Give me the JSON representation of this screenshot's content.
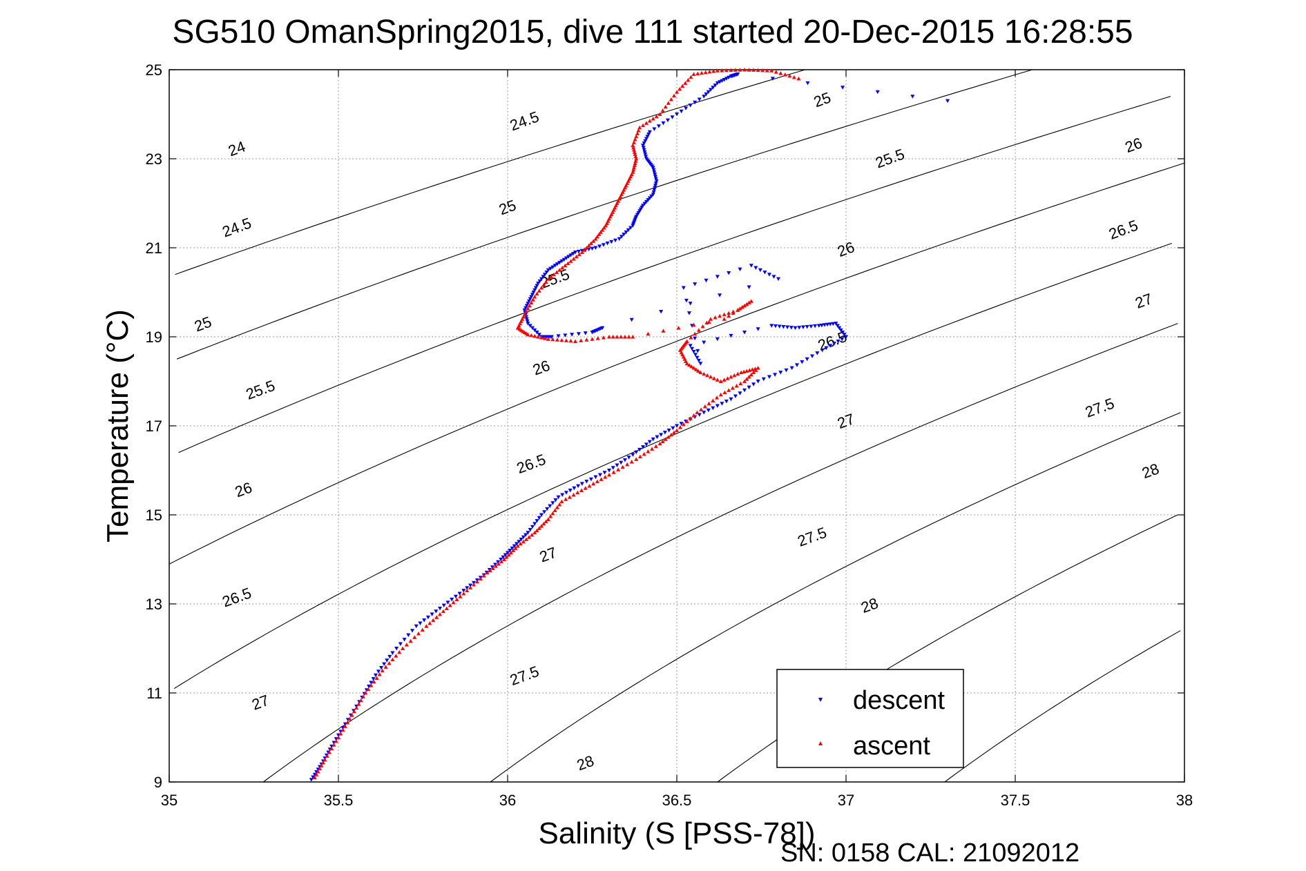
{
  "title": "SG510 OmanSpring2015, dive 111 started 20-Dec-2015 16:28:55",
  "xlabel": "Salinity (S [PSS-78])",
  "ylabel": "Temperature (°C)",
  "footer": "SN: 0158  CAL: 21092012",
  "colors": {
    "descent": "#0000ff",
    "ascent": "#ff0000",
    "contour": "#000000",
    "grid": "#9a9a9a"
  },
  "chart_data": {
    "type": "scatter",
    "xlim": [
      35,
      38
    ],
    "ylim": [
      9,
      25
    ],
    "xticks": [
      35,
      35.5,
      36,
      36.5,
      37,
      37.5,
      38
    ],
    "yticks": [
      9,
      11,
      13,
      15,
      17,
      19,
      21,
      23,
      25
    ],
    "xticklabels": [
      "35",
      "35.5",
      "36",
      "36.5",
      "37",
      "37.5",
      "38"
    ],
    "yticklabels": [
      "9",
      "11",
      "13",
      "15",
      "17",
      "19",
      "21",
      "23",
      "25"
    ],
    "grid": true,
    "legend_position": "bottom-right",
    "density_contours": {
      "levels": [
        24,
        24.5,
        25,
        25.5,
        26,
        26.5,
        27,
        27.5,
        28
      ],
      "labels": [
        {
          "text": "24",
          "s": 35.2,
          "t": 23.22
        },
        {
          "text": "24.5",
          "s": 35.2,
          "t": 21.45
        },
        {
          "text": "24.5",
          "s": 36.05,
          "t": 23.84
        },
        {
          "text": "25",
          "s": 35.1,
          "t": 19.28
        },
        {
          "text": "25",
          "s": 36.0,
          "t": 21.9
        },
        {
          "text": "25",
          "s": 36.93,
          "t": 24.32
        },
        {
          "text": "25.5",
          "s": 35.27,
          "t": 17.8
        },
        {
          "text": "25.5",
          "s": 37.13,
          "t": 23.0
        },
        {
          "text": "25.5",
          "s": 36.14,
          "t": 20.3
        },
        {
          "text": "26",
          "s": 35.22,
          "t": 15.56
        },
        {
          "text": "26",
          "s": 36.1,
          "t": 18.3
        },
        {
          "text": "26",
          "s": 37.0,
          "t": 20.96
        },
        {
          "text": "26",
          "s": 37.85,
          "t": 23.3
        },
        {
          "text": "26.5",
          "s": 35.2,
          "t": 13.14
        },
        {
          "text": "26.5",
          "s": 36.07,
          "t": 16.14
        },
        {
          "text": "26.5",
          "s": 36.96,
          "t": 18.9
        },
        {
          "text": "26.5",
          "s": 37.82,
          "t": 21.4
        },
        {
          "text": "27",
          "s": 35.27,
          "t": 10.78
        },
        {
          "text": "27",
          "s": 36.12,
          "t": 14.1
        },
        {
          "text": "27",
          "s": 37.0,
          "t": 17.1
        },
        {
          "text": "27",
          "s": 37.88,
          "t": 19.8
        },
        {
          "text": "27.5",
          "s": 36.05,
          "t": 11.38
        },
        {
          "text": "27.5",
          "s": 36.9,
          "t": 14.5
        },
        {
          "text": "27.5",
          "s": 37.75,
          "t": 17.4
        },
        {
          "text": "28",
          "s": 36.23,
          "t": 9.42
        },
        {
          "text": "28",
          "s": 37.07,
          "t": 12.96
        },
        {
          "text": "28",
          "s": 37.9,
          "t": 15.98
        }
      ]
    },
    "series": [
      {
        "name": "descent",
        "marker": "triangle-down",
        "color": "#0000ff",
        "points": [
          [
            35.42,
            9.05
          ],
          [
            35.45,
            9.4
          ],
          [
            35.48,
            9.8
          ],
          [
            35.52,
            10.3
          ],
          [
            35.57,
            10.9
          ],
          [
            35.61,
            11.4
          ],
          [
            35.66,
            11.9
          ],
          [
            35.73,
            12.5
          ],
          [
            35.8,
            12.9
          ],
          [
            35.87,
            13.3
          ],
          [
            35.93,
            13.65
          ],
          [
            35.98,
            14.0
          ],
          [
            36.02,
            14.3
          ],
          [
            36.06,
            14.6
          ],
          [
            36.1,
            15.0
          ],
          [
            36.15,
            15.4
          ],
          [
            36.22,
            15.7
          ],
          [
            36.3,
            16.0
          ],
          [
            36.37,
            16.35
          ],
          [
            36.43,
            16.7
          ],
          [
            36.5,
            17.0
          ],
          [
            36.58,
            17.3
          ],
          [
            36.66,
            17.6
          ],
          [
            36.74,
            18.0
          ],
          [
            36.84,
            18.3
          ],
          [
            36.93,
            18.7
          ],
          [
            37.0,
            19.0
          ],
          [
            36.97,
            19.3
          ],
          [
            36.92,
            19.25
          ],
          [
            36.85,
            19.2
          ],
          [
            36.78,
            19.25
          ],
          [
            36.54,
            18.8
          ],
          [
            36.57,
            18.4
          ],
          [
            36.52,
            20.1
          ],
          [
            36.72,
            20.6
          ],
          [
            36.8,
            20.3
          ],
          [
            36.28,
            19.2
          ],
          [
            36.25,
            19.1
          ],
          [
            36.13,
            19.0
          ],
          [
            36.1,
            19.0
          ],
          [
            36.06,
            19.3
          ],
          [
            36.05,
            19.6
          ],
          [
            36.07,
            19.9
          ],
          [
            36.09,
            20.2
          ],
          [
            36.12,
            20.5
          ],
          [
            36.16,
            20.7
          ],
          [
            36.2,
            20.9
          ],
          [
            36.26,
            21.0
          ],
          [
            36.33,
            21.2
          ],
          [
            36.37,
            21.5
          ],
          [
            36.38,
            21.7
          ],
          [
            36.4,
            21.95
          ],
          [
            36.43,
            22.2
          ],
          [
            36.44,
            22.5
          ],
          [
            36.43,
            22.8
          ],
          [
            36.41,
            23.0
          ],
          [
            36.4,
            23.3
          ],
          [
            36.42,
            23.6
          ],
          [
            36.5,
            24.0
          ],
          [
            36.58,
            24.4
          ],
          [
            36.62,
            24.7
          ],
          [
            36.66,
            24.85
          ],
          [
            36.68,
            24.9
          ],
          [
            37.3,
            24.3
          ]
        ]
      },
      {
        "name": "ascent",
        "marker": "triangle-up",
        "color": "#ff0000",
        "points": [
          [
            35.43,
            9.1
          ],
          [
            35.46,
            9.5
          ],
          [
            35.5,
            10.0
          ],
          [
            35.54,
            10.5
          ],
          [
            35.58,
            11.0
          ],
          [
            35.63,
            11.5
          ],
          [
            35.69,
            12.0
          ],
          [
            35.76,
            12.5
          ],
          [
            35.82,
            12.9
          ],
          [
            35.88,
            13.3
          ],
          [
            35.94,
            13.7
          ],
          [
            35.99,
            14.0
          ],
          [
            36.03,
            14.3
          ],
          [
            36.08,
            14.6
          ],
          [
            36.12,
            14.9
          ],
          [
            36.16,
            15.3
          ],
          [
            36.23,
            15.6
          ],
          [
            36.3,
            15.9
          ],
          [
            36.38,
            16.25
          ],
          [
            36.45,
            16.6
          ],
          [
            36.5,
            16.9
          ],
          [
            36.56,
            17.3
          ],
          [
            36.63,
            17.7
          ],
          [
            36.7,
            18.0
          ],
          [
            36.74,
            18.3
          ],
          [
            36.69,
            18.2
          ],
          [
            36.63,
            18.0
          ],
          [
            36.57,
            18.2
          ],
          [
            36.53,
            18.4
          ],
          [
            36.51,
            18.7
          ],
          [
            36.53,
            18.9
          ],
          [
            36.6,
            19.4
          ],
          [
            36.68,
            19.6
          ],
          [
            36.72,
            19.8
          ],
          [
            36.64,
            19.4
          ],
          [
            36.37,
            19.0
          ],
          [
            36.3,
            19.0
          ],
          [
            36.2,
            18.9
          ],
          [
            36.12,
            18.95
          ],
          [
            36.06,
            19.05
          ],
          [
            36.03,
            19.2
          ],
          [
            36.05,
            19.5
          ],
          [
            36.08,
            19.9
          ],
          [
            36.12,
            20.3
          ],
          [
            36.17,
            20.6
          ],
          [
            36.22,
            20.9
          ],
          [
            36.26,
            21.2
          ],
          [
            36.29,
            21.5
          ],
          [
            36.31,
            21.8
          ],
          [
            36.33,
            22.1
          ],
          [
            36.35,
            22.4
          ],
          [
            36.37,
            22.7
          ],
          [
            36.38,
            23.0
          ],
          [
            36.37,
            23.3
          ],
          [
            36.39,
            23.7
          ],
          [
            36.45,
            24.0
          ],
          [
            36.5,
            24.5
          ],
          [
            36.55,
            24.9
          ],
          [
            36.62,
            24.98
          ],
          [
            36.7,
            25.0
          ],
          [
            36.78,
            24.98
          ],
          [
            36.86,
            24.8
          ]
        ]
      }
    ]
  }
}
